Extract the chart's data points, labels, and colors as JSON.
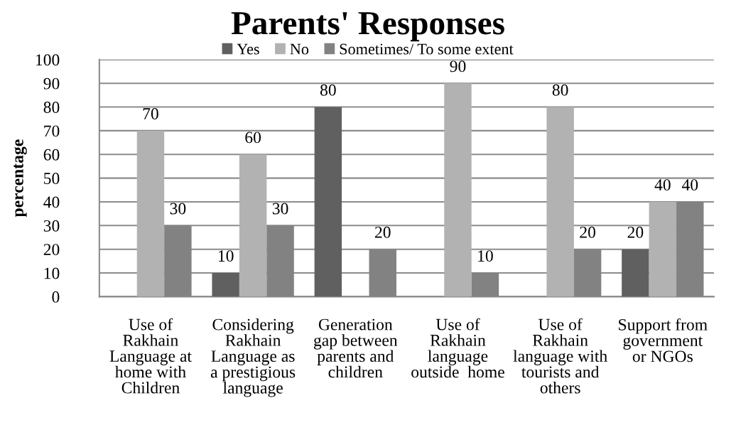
{
  "chart_data": {
    "type": "bar",
    "title": "Parents' Responses",
    "ylabel": "percentage",
    "categories": [
      "Use of\nRakhain\nLanguage at\nhome with\nChildren",
      "Considering\nRakhain\nLanguage as\na prestigious\nlanguage",
      "Generation\ngap between\nparents and\nchildren",
      "Use of\nRakhain\nlanguage\noutside  home",
      "Use of\nRakhain\nlanguage with\ntourists and\nothers",
      "Support from\ngovernment\nor NGOs"
    ],
    "series": [
      {
        "name": "Yes",
        "color": "#606060",
        "values": [
          null,
          10,
          80,
          null,
          null,
          20
        ]
      },
      {
        "name": "No",
        "color": "#b2b2b2",
        "values": [
          70,
          60,
          null,
          90,
          80,
          40
        ]
      },
      {
        "name": "Sometimes/ To some extent",
        "color": "#828282",
        "values": [
          30,
          30,
          20,
          10,
          20,
          40
        ]
      }
    ],
    "ylim": [
      0,
      100
    ],
    "yticks": [
      0,
      10,
      20,
      30,
      40,
      50,
      60,
      70,
      80,
      90,
      100
    ],
    "grid": "y",
    "legend": "top",
    "data_labels": true
  }
}
